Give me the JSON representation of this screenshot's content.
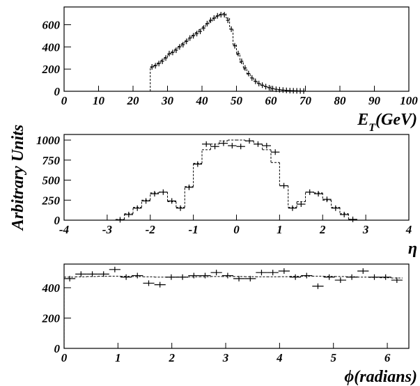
{
  "chart_data": [
    {
      "type": "histogram",
      "xlim": [
        0,
        100
      ],
      "ylim": [
        0,
        760
      ],
      "xticks": [
        0,
        10,
        20,
        30,
        40,
        50,
        60,
        70,
        80,
        90,
        100
      ],
      "yticks": [
        0,
        200,
        400,
        600
      ],
      "xlabel": [
        "E",
        "T",
        "(GeV)"
      ],
      "x": [
        25.5,
        26.5,
        27.5,
        28.5,
        29.5,
        30.5,
        31.5,
        32.5,
        33.5,
        34.5,
        35.5,
        36.5,
        37.5,
        38.5,
        39.5,
        40.5,
        41.5,
        42.5,
        43.5,
        44.5,
        45.5,
        46.5,
        47.5,
        48.5,
        49.5,
        50.5,
        51.5,
        52.5,
        53.5,
        54.5,
        55.5,
        56.5,
        57.5,
        58.5,
        59.5,
        60.5,
        61.5,
        62.5,
        63.5,
        64.5,
        65.5,
        66.5,
        67.5,
        68.5,
        69.5
      ],
      "series": [
        {
          "style": "points",
          "color": "#000000",
          "values": [
            220,
            230,
            250,
            270,
            300,
            340,
            350,
            370,
            400,
            420,
            450,
            480,
            500,
            520,
            540,
            570,
            610,
            640,
            660,
            680,
            690,
            690,
            640,
            560,
            410,
            340,
            270,
            210,
            160,
            120,
            90,
            70,
            55,
            42,
            32,
            24,
            18,
            14,
            11,
            8,
            6,
            5,
            4,
            3,
            2
          ]
        },
        {
          "style": "step",
          "color": "#000000",
          "values": [
            215,
            235,
            255,
            280,
            305,
            330,
            355,
            380,
            405,
            430,
            455,
            480,
            505,
            530,
            555,
            580,
            605,
            630,
            655,
            675,
            695,
            700,
            660,
            560,
            420,
            330,
            260,
            200,
            155,
            120,
            92,
            70,
            54,
            42,
            33,
            25,
            19,
            15,
            11,
            9,
            7,
            5,
            4,
            3,
            2
          ]
        }
      ]
    },
    {
      "type": "histogram",
      "xlim": [
        -4,
        4
      ],
      "ylim": [
        0,
        1070
      ],
      "xticks": [
        -4,
        -3,
        -2,
        -1,
        0,
        1,
        2,
        3,
        4
      ],
      "yticks": [
        0,
        250,
        500,
        750,
        1000
      ],
      "xlabel": [
        "η"
      ],
      "ylabel": "Arbitrary Units",
      "x": [
        -2.7,
        -2.5,
        -2.3,
        -2.1,
        -1.9,
        -1.7,
        -1.5,
        -1.3,
        -1.1,
        -0.9,
        -0.7,
        -0.5,
        -0.3,
        -0.1,
        0.1,
        0.3,
        0.5,
        0.7,
        0.9,
        1.1,
        1.3,
        1.5,
        1.7,
        1.9,
        2.1,
        2.3,
        2.5,
        2.7
      ],
      "series": [
        {
          "style": "points",
          "color": "#000000",
          "values": [
            5,
            70,
            150,
            240,
            330,
            350,
            240,
            150,
            410,
            700,
            950,
            920,
            960,
            930,
            920,
            990,
            950,
            930,
            850,
            430,
            150,
            200,
            350,
            330,
            260,
            150,
            70,
            10
          ]
        },
        {
          "style": "step",
          "color": "#000000",
          "values": [
            10,
            80,
            160,
            250,
            340,
            350,
            230,
            160,
            420,
            710,
            880,
            950,
            990,
            1000,
            1000,
            990,
            950,
            880,
            720,
            430,
            160,
            230,
            350,
            340,
            250,
            160,
            80,
            10
          ]
        }
      ]
    },
    {
      "type": "histogram",
      "xlim": [
        0,
        6.4
      ],
      "ylim": [
        0,
        556
      ],
      "xticks": [
        0,
        1,
        2,
        3,
        4,
        5,
        6
      ],
      "yticks": [
        0,
        200,
        400
      ],
      "xlabel": [
        "ϕ(radians)"
      ],
      "x": [
        0.105,
        0.314,
        0.524,
        0.733,
        0.942,
        1.152,
        1.361,
        1.571,
        1.78,
        1.99,
        2.199,
        2.409,
        2.618,
        2.827,
        3.037,
        3.246,
        3.456,
        3.665,
        3.875,
        4.084,
        4.294,
        4.503,
        4.712,
        4.922,
        5.131,
        5.341,
        5.55,
        5.76,
        5.969,
        6.178
      ],
      "series": [
        {
          "style": "points",
          "color": "#000000",
          "values": [
            460,
            490,
            490,
            490,
            520,
            470,
            480,
            430,
            420,
            470,
            470,
            480,
            480,
            500,
            480,
            460,
            460,
            500,
            500,
            510,
            470,
            480,
            410,
            470,
            450,
            470,
            510,
            470,
            470,
            450
          ]
        },
        {
          "style": "step",
          "color": "#000000",
          "values": [
            470,
            472,
            474,
            476,
            476,
            475,
            474,
            472,
            470,
            470,
            471,
            472,
            473,
            474,
            474,
            474,
            473,
            472,
            472,
            473,
            475,
            476,
            476,
            475,
            474,
            472,
            470,
            468,
            466,
            464
          ]
        }
      ]
    }
  ]
}
